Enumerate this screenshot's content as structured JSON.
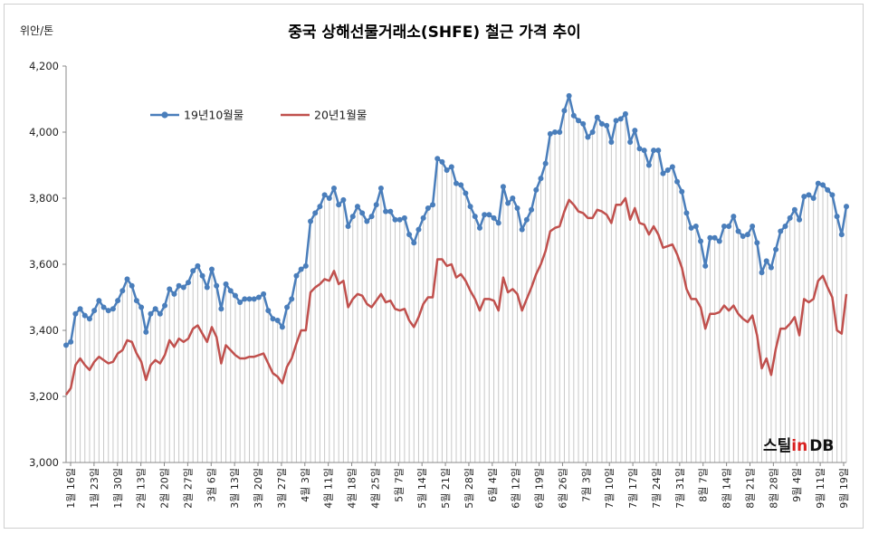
{
  "chart_data": {
    "type": "line",
    "title": "중국 상해선물거래소(SHFE)  철근 가격 추이",
    "unit_label": "위안/톤",
    "ylim": [
      3000,
      4200
    ],
    "yticks": [
      "3,000",
      "3,200",
      "3,400",
      "3,600",
      "3,800",
      "4,000",
      "4,200"
    ],
    "ytick_values": [
      3000,
      3200,
      3400,
      3600,
      3800,
      4000,
      4200
    ],
    "grid": false,
    "legend_position": "top-left",
    "drop_lines": true,
    "x_tick_labels": [
      "1월 16일",
      "1월 23일",
      "1월 30일",
      "2월 13일",
      "2월 20일",
      "2월 27일",
      "3월 6일",
      "3월 13일",
      "3월 20일",
      "3월 27일",
      "4월 3일",
      "4월 11일",
      "4월 18일",
      "4월 25일",
      "5월 7일",
      "5월 14일",
      "5월 21일",
      "5월 28일",
      "6월 4일",
      "6월 12일",
      "6월 19일",
      "6월 26일",
      "7월 3일",
      "7월 10일",
      "7월 17일",
      "7월 24일",
      "7월 31일",
      "8월 7일",
      "8월 14일",
      "8월 21일",
      "8월 28일",
      "9월 4일",
      "9월 11일",
      "9월 19일"
    ],
    "series": [
      {
        "name": "19년10월물",
        "color": "#4a7ebb",
        "marker": "circle",
        "values": [
          3355,
          3365,
          3450,
          3465,
          3445,
          3435,
          3460,
          3490,
          3470,
          3460,
          3465,
          3490,
          3520,
          3555,
          3535,
          3490,
          3470,
          3395,
          3450,
          3465,
          3450,
          3475,
          3525,
          3510,
          3535,
          3530,
          3545,
          3580,
          3595,
          3565,
          3530,
          3585,
          3535,
          3465,
          3540,
          3520,
          3505,
          3485,
          3495,
          3495,
          3495,
          3500,
          3510,
          3460,
          3435,
          3430,
          3410,
          3470,
          3495,
          3565,
          3585,
          3595,
          3730,
          3755,
          3775,
          3810,
          3800,
          3830,
          3780,
          3795,
          3715,
          3745,
          3775,
          3755,
          3730,
          3745,
          3780,
          3830,
          3760,
          3760,
          3735,
          3735,
          3740,
          3690,
          3665,
          3705,
          3740,
          3770,
          3780,
          3920,
          3910,
          3885,
          3895,
          3845,
          3840,
          3815,
          3775,
          3745,
          3710,
          3750,
          3750,
          3740,
          3725,
          3835,
          3785,
          3800,
          3770,
          3705,
          3735,
          3765,
          3825,
          3860,
          3905,
          3995,
          4000,
          4000,
          4065,
          4110,
          4050,
          4035,
          4025,
          3985,
          4000,
          4045,
          4025,
          4020,
          3970,
          4035,
          4040,
          4055,
          3970,
          4005,
          3950,
          3945,
          3900,
          3945,
          3945,
          3875,
          3885,
          3895,
          3850,
          3820,
          3755,
          3710,
          3715,
          3670,
          3595,
          3680,
          3680,
          3670,
          3715,
          3715,
          3745,
          3700,
          3685,
          3690,
          3715,
          3665,
          3575,
          3610,
          3590,
          3645,
          3700,
          3715,
          3740,
          3765,
          3735,
          3805,
          3810,
          3800,
          3845,
          3840,
          3825,
          3810,
          3745,
          3690,
          3775
        ]
      },
      {
        "name": "20년1월물",
        "color": "#c0504d",
        "marker": "none",
        "values": [
          3205,
          3225,
          3295,
          3315,
          3295,
          3280,
          3305,
          3320,
          3310,
          3300,
          3305,
          3330,
          3340,
          3370,
          3365,
          3330,
          3305,
          3250,
          3295,
          3310,
          3300,
          3325,
          3370,
          3350,
          3375,
          3365,
          3375,
          3405,
          3415,
          3390,
          3365,
          3410,
          3380,
          3300,
          3355,
          3340,
          3325,
          3315,
          3315,
          3320,
          3320,
          3325,
          3330,
          3300,
          3270,
          3260,
          3240,
          3290,
          3315,
          3360,
          3400,
          3400,
          3515,
          3530,
          3540,
          3555,
          3550,
          3580,
          3540,
          3550,
          3470,
          3495,
          3510,
          3505,
          3480,
          3470,
          3490,
          3510,
          3485,
          3490,
          3465,
          3460,
          3465,
          3430,
          3410,
          3440,
          3480,
          3500,
          3500,
          3615,
          3615,
          3595,
          3600,
          3560,
          3570,
          3550,
          3520,
          3495,
          3460,
          3495,
          3495,
          3490,
          3460,
          3560,
          3515,
          3525,
          3510,
          3460,
          3495,
          3530,
          3570,
          3600,
          3640,
          3700,
          3710,
          3715,
          3760,
          3795,
          3780,
          3760,
          3755,
          3740,
          3740,
          3765,
          3760,
          3750,
          3725,
          3780,
          3780,
          3800,
          3735,
          3770,
          3725,
          3720,
          3690,
          3715,
          3690,
          3650,
          3655,
          3660,
          3630,
          3590,
          3525,
          3495,
          3495,
          3470,
          3405,
          3450,
          3450,
          3455,
          3475,
          3460,
          3475,
          3450,
          3435,
          3425,
          3445,
          3385,
          3285,
          3315,
          3265,
          3345,
          3405,
          3405,
          3420,
          3440,
          3385,
          3495,
          3485,
          3495,
          3550,
          3565,
          3530,
          3500,
          3400,
          3390,
          3510
        ]
      }
    ]
  },
  "watermark": {
    "part_a": "스틸",
    "part_b": "in",
    "part_c": "DB"
  }
}
